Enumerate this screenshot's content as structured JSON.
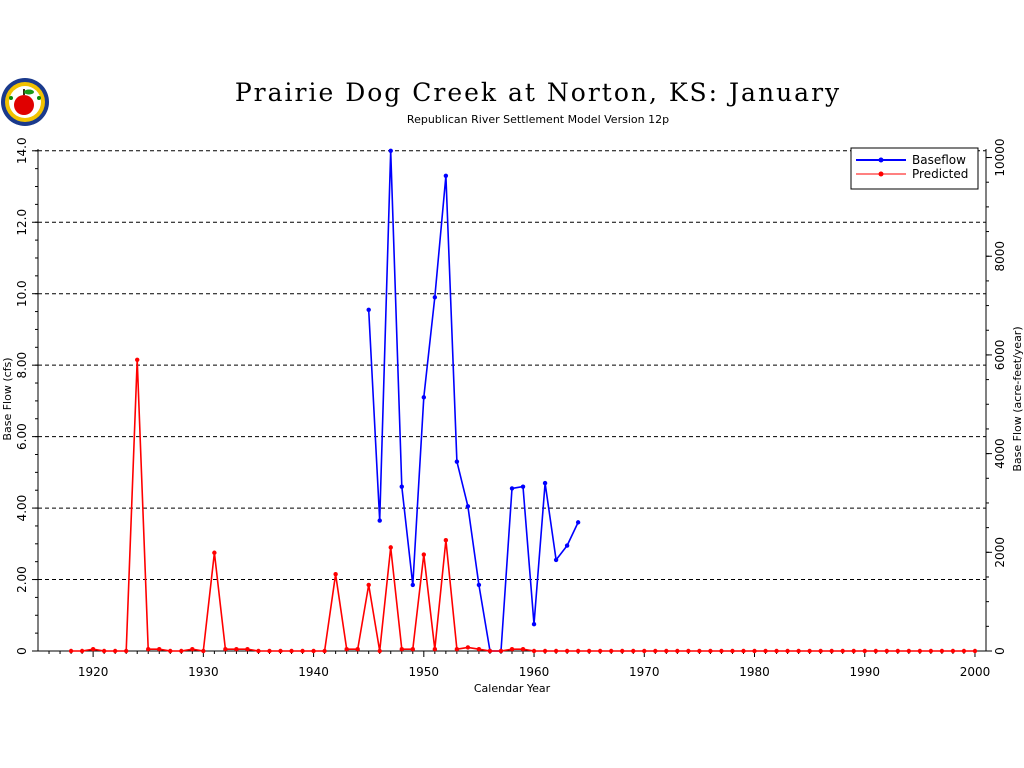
{
  "chart_data": {
    "type": "line",
    "title": "Prairie Dog Creek at Norton, KS: January",
    "subtitle": "Republican River Settlement Model Version 12p",
    "xlabel": "Calendar Year",
    "ylabel_left": "Base Flow (cfs)",
    "ylabel_right": "Base Flow (acre-feet/year)",
    "xlim": [
      1915,
      2001
    ],
    "ylim": [
      0,
      14.05
    ],
    "y2lim": [
      0,
      10173
    ],
    "x_ticks": [
      "1920",
      "1930",
      "1940",
      "1950",
      "1960",
      "1970",
      "1980",
      "1990",
      "2000"
    ],
    "y_ticks": [
      "0",
      "2.00",
      "4.00",
      "6.00",
      "8.00",
      "10.0",
      "12.0",
      "14.0"
    ],
    "y2_ticks": [
      "0",
      "2000",
      "4000",
      "6000",
      "8000",
      "10000"
    ],
    "grid": "horizontal dashed",
    "legend_position": "top-right",
    "series": [
      {
        "name": "Baseflow",
        "color": "#0000ff",
        "x": [
          1945,
          1946,
          1947,
          1948,
          1949,
          1950,
          1951,
          1952,
          1953,
          1954,
          1955,
          1956,
          1957,
          1958,
          1959,
          1960,
          1961,
          1962,
          1963,
          1964
        ],
        "y": [
          9.55,
          3.65,
          14.0,
          4.6,
          1.85,
          7.1,
          9.9,
          13.3,
          5.3,
          4.05,
          1.85,
          0.0,
          0.0,
          4.55,
          4.6,
          0.75,
          4.7,
          2.55,
          2.95,
          3.6
        ]
      },
      {
        "name": "Predicted",
        "color": "#ff0000",
        "x": [
          1918,
          1919,
          1920,
          1921,
          1922,
          1923,
          1924,
          1925,
          1926,
          1927,
          1928,
          1929,
          1930,
          1931,
          1932,
          1933,
          1934,
          1935,
          1936,
          1937,
          1938,
          1939,
          1940,
          1941,
          1942,
          1943,
          1944,
          1945,
          1946,
          1947,
          1948,
          1949,
          1950,
          1951,
          1952,
          1953,
          1954,
          1955,
          1956,
          1957,
          1958,
          1959,
          1960,
          1961,
          1962,
          1963,
          1964,
          1965,
          1966,
          1967,
          1968,
          1969,
          1970,
          1971,
          1972,
          1973,
          1974,
          1975,
          1976,
          1977,
          1978,
          1979,
          1980,
          1981,
          1982,
          1983,
          1984,
          1985,
          1986,
          1987,
          1988,
          1989,
          1990,
          1991,
          1992,
          1993,
          1994,
          1995,
          1996,
          1997,
          1998,
          1999,
          2000
        ],
        "y": [
          0,
          0,
          0.05,
          0,
          0,
          0,
          8.15,
          0.05,
          0.05,
          0,
          0,
          0.05,
          0,
          2.75,
          0.05,
          0.05,
          0.05,
          0,
          0,
          0,
          0,
          0,
          0,
          0,
          2.15,
          0.05,
          0.05,
          1.85,
          0,
          2.9,
          0.05,
          0.05,
          2.7,
          0.05,
          3.1,
          0.05,
          0.1,
          0.05,
          0,
          0,
          0.05,
          0.05,
          0,
          0,
          0,
          0,
          0,
          0,
          0,
          0,
          0,
          0,
          0,
          0,
          0,
          0,
          0,
          0,
          0,
          0,
          0,
          0,
          0,
          0,
          0,
          0,
          0,
          0,
          0,
          0,
          0,
          0,
          0,
          0,
          0,
          0,
          0,
          0,
          0,
          0,
          0,
          0,
          0
        ]
      }
    ]
  },
  "logo": {
    "name": "kansas-apple-seal"
  }
}
